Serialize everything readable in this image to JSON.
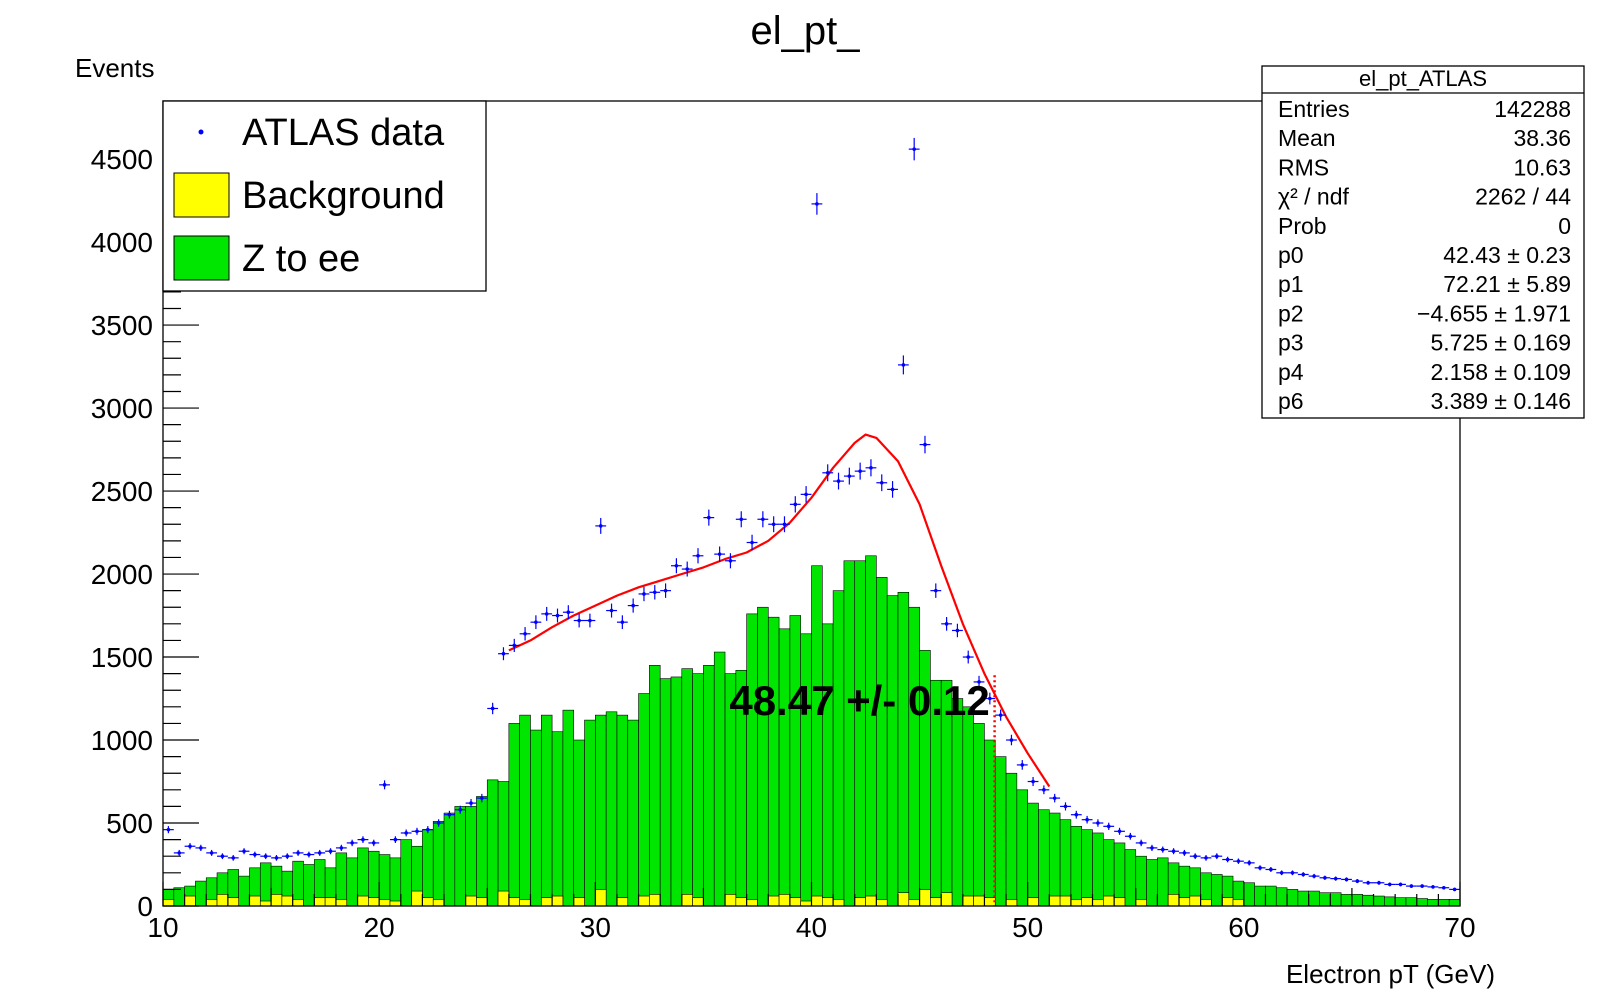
{
  "chart_data": {
    "type": "histogram",
    "title": "el_pt_",
    "xlabel": "Electron pT (GeV)",
    "ylabel": "Events",
    "xlim": [
      10,
      70
    ],
    "ylim": [
      0,
      4850
    ],
    "x_ticks": [
      "10",
      "20",
      "30",
      "40",
      "50",
      "60",
      "70"
    ],
    "y_ticks": [
      "0",
      "500",
      "1000",
      "1500",
      "2000",
      "2500",
      "3000",
      "3500",
      "4000",
      "4500"
    ],
    "bin_width": 0.5,
    "legend": {
      "placement": "top-left",
      "entries": [
        {
          "label": "ATLAS data",
          "style": "marker",
          "color": "#0000ff"
        },
        {
          "label": "Background",
          "style": "fill",
          "color": "#ffff00"
        },
        {
          "label": "Z to ee",
          "style": "fill",
          "color": "#00e600"
        }
      ]
    },
    "series": [
      {
        "name": "ATLAS data",
        "type": "points",
        "color": "#0000ff",
        "x": [
          10.25,
          10.75,
          11.25,
          11.75,
          12.25,
          12.75,
          13.25,
          13.75,
          14.25,
          14.75,
          15.25,
          15.75,
          16.25,
          16.75,
          17.25,
          17.75,
          18.25,
          18.75,
          19.25,
          19.75,
          20.25,
          20.75,
          21.25,
          21.75,
          22.25,
          22.75,
          23.25,
          23.75,
          24.25,
          24.75,
          25.25,
          25.75,
          26.25,
          26.75,
          27.25,
          27.75,
          28.25,
          28.75,
          29.25,
          29.75,
          30.25,
          30.75,
          31.25,
          31.75,
          32.25,
          32.75,
          33.25,
          33.75,
          34.25,
          34.75,
          35.25,
          35.75,
          36.25,
          36.75,
          37.25,
          37.75,
          38.25,
          38.75,
          39.25,
          39.75,
          40.25,
          40.75,
          41.25,
          41.75,
          42.25,
          42.75,
          43.25,
          43.75,
          44.25,
          44.75,
          45.25,
          45.75,
          46.25,
          46.75,
          47.25,
          47.75,
          48.25,
          48.75,
          49.25,
          49.75,
          50.25,
          50.75,
          51.25,
          51.75,
          52.25,
          52.75,
          53.25,
          53.75,
          54.25,
          54.75,
          55.25,
          55.75,
          56.25,
          56.75,
          57.25,
          57.75,
          58.25,
          58.75,
          59.25,
          59.75,
          60.25,
          60.75,
          61.25,
          61.75,
          62.25,
          62.75,
          63.25,
          63.75,
          64.25,
          64.75,
          65.25,
          65.75,
          66.25,
          66.75,
          67.25,
          67.75,
          68.25,
          68.75,
          69.25,
          69.75
        ],
        "y": [
          460,
          320,
          360,
          350,
          320,
          300,
          290,
          330,
          310,
          300,
          290,
          300,
          320,
          310,
          320,
          330,
          350,
          380,
          400,
          380,
          730,
          400,
          440,
          450,
          460,
          500,
          550,
          580,
          620,
          650,
          1190,
          1520,
          1570,
          1640,
          1710,
          1760,
          1750,
          1770,
          1720,
          1720,
          2290,
          1780,
          1710,
          1810,
          1880,
          1890,
          1900,
          2050,
          2030,
          2110,
          2340,
          2120,
          2080,
          2330,
          2190,
          2330,
          2300,
          2300,
          2420,
          2480,
          4230,
          2610,
          2560,
          2590,
          2620,
          2640,
          2550,
          2510,
          3260,
          4560,
          2780,
          1900,
          1700,
          1660,
          1500,
          1350,
          1250,
          1150,
          1000,
          850,
          750,
          700,
          650,
          600,
          550,
          520,
          500,
          480,
          450,
          420,
          380,
          350,
          340,
          330,
          320,
          300,
          290,
          300,
          280,
          270,
          260,
          230,
          220,
          200,
          200,
          190,
          180,
          170,
          165,
          160,
          150,
          140,
          140,
          130,
          130,
          120,
          120,
          115,
          110,
          100
        ]
      },
      {
        "name": "Z to ee",
        "type": "histogram",
        "color": "#00e600",
        "x": [
          10.25,
          10.75,
          11.25,
          11.75,
          12.25,
          12.75,
          13.25,
          13.75,
          14.25,
          14.75,
          15.25,
          15.75,
          16.25,
          16.75,
          17.25,
          17.75,
          18.25,
          18.75,
          19.25,
          19.75,
          20.25,
          20.75,
          21.25,
          21.75,
          22.25,
          22.75,
          23.25,
          23.75,
          24.25,
          24.75,
          25.25,
          25.75,
          26.25,
          26.75,
          27.25,
          27.75,
          28.25,
          28.75,
          29.25,
          29.75,
          30.25,
          30.75,
          31.25,
          31.75,
          32.25,
          32.75,
          33.25,
          33.75,
          34.25,
          34.75,
          35.25,
          35.75,
          36.25,
          36.75,
          37.25,
          37.75,
          38.25,
          38.75,
          39.25,
          39.75,
          40.25,
          40.75,
          41.25,
          41.75,
          42.25,
          42.75,
          43.25,
          43.75,
          44.25,
          44.75,
          45.25,
          45.75,
          46.25,
          46.75,
          47.25,
          47.75,
          48.25,
          48.75,
          49.25,
          49.75,
          50.25,
          50.75,
          51.25,
          51.75,
          52.25,
          52.75,
          53.25,
          53.75,
          54.25,
          54.75,
          55.25,
          55.75,
          56.25,
          56.75,
          57.25,
          57.75,
          58.25,
          58.75,
          59.25,
          59.75,
          60.25,
          60.75,
          61.25,
          61.75,
          62.25,
          62.75,
          63.25,
          63.75,
          64.25,
          64.75,
          65.25,
          65.75,
          66.25,
          66.75,
          67.25,
          67.75,
          68.25,
          68.75,
          69.25,
          69.75
        ],
        "y": [
          100,
          110,
          120,
          150,
          170,
          200,
          220,
          180,
          230,
          260,
          240,
          210,
          270,
          250,
          280,
          230,
          320,
          290,
          350,
          330,
          310,
          290,
          400,
          360,
          460,
          510,
          560,
          600,
          600,
          660,
          760,
          750,
          1100,
          1150,
          1060,
          1150,
          1050,
          1180,
          1000,
          1120,
          1150,
          1170,
          1150,
          1120,
          1280,
          1450,
          1370,
          1380,
          1430,
          1400,
          1450,
          1530,
          1400,
          1420,
          1760,
          1800,
          1740,
          1670,
          1750,
          1640,
          2050,
          1700,
          1900,
          2080,
          2080,
          2110,
          1980,
          1870,
          1890,
          1800,
          1540,
          1360,
          1360,
          1250,
          1200,
          1100,
          1000,
          900,
          800,
          700,
          620,
          580,
          560,
          520,
          480,
          460,
          440,
          400,
          380,
          340,
          300,
          280,
          290,
          260,
          240,
          230,
          200,
          190,
          180,
          150,
          140,
          120,
          120,
          110,
          100,
          90,
          90,
          80,
          80,
          70,
          70,
          65,
          60,
          55,
          50,
          50,
          45,
          40,
          40,
          40
        ]
      },
      {
        "name": "Background",
        "type": "histogram",
        "color": "#ffff00",
        "x": [
          10.25,
          10.75,
          11.25,
          11.75,
          12.25,
          12.75,
          13.25,
          13.75,
          14.25,
          14.75,
          15.25,
          15.75,
          16.25,
          16.75,
          17.25,
          17.75,
          18.25,
          18.75,
          19.25,
          19.75,
          20.25,
          20.75,
          21.25,
          21.75,
          22.25,
          22.75,
          23.25,
          23.75,
          24.25,
          24.75,
          25.25,
          25.75,
          26.25,
          26.75,
          27.25,
          27.75,
          28.25,
          28.75,
          29.25,
          29.75,
          30.25,
          30.75,
          31.25,
          31.75,
          32.25,
          32.75,
          33.25,
          33.75,
          34.25,
          34.75,
          35.25,
          35.75,
          36.25,
          36.75,
          37.25,
          37.75,
          38.25,
          38.75,
          39.25,
          39.75,
          40.25,
          40.75,
          41.25,
          41.75,
          42.25,
          42.75,
          43.25,
          43.75,
          44.25,
          44.75,
          45.25,
          45.75,
          46.25,
          46.75,
          47.25,
          47.75,
          48.25,
          48.75,
          49.25,
          49.75,
          50.25,
          50.75,
          51.25,
          51.75,
          52.25,
          52.75,
          53.25,
          53.75,
          54.25,
          54.75,
          55.25,
          55.75,
          56.25,
          56.75,
          57.25,
          57.75,
          58.25,
          58.75,
          59.25,
          59.75,
          60.25,
          60.75,
          61.25,
          61.75,
          62.25,
          62.75,
          63.25,
          63.75,
          64.25,
          64.75,
          65.25,
          65.75,
          66.25,
          66.75,
          67.25,
          67.75,
          68.25,
          68.75,
          69.25,
          69.75
        ],
        "y": [
          40,
          0,
          60,
          0,
          40,
          70,
          50,
          0,
          60,
          30,
          70,
          60,
          40,
          0,
          50,
          50,
          40,
          0,
          60,
          50,
          40,
          30,
          0,
          90,
          50,
          40,
          0,
          0,
          60,
          50,
          0,
          90,
          50,
          40,
          0,
          50,
          60,
          0,
          50,
          0,
          100,
          0,
          50,
          0,
          60,
          70,
          0,
          0,
          70,
          50,
          0,
          0,
          70,
          50,
          40,
          0,
          60,
          70,
          50,
          30,
          60,
          50,
          40,
          0,
          50,
          60,
          40,
          0,
          80,
          40,
          100,
          50,
          80,
          0,
          60,
          60,
          50,
          0,
          40,
          0,
          50,
          0,
          60,
          60,
          40,
          50,
          40,
          60,
          50,
          0,
          40,
          0,
          0,
          70,
          50,
          60,
          40,
          0,
          50,
          40,
          0,
          0,
          0,
          0,
          0,
          0,
          0,
          0,
          0,
          0,
          0,
          0,
          0,
          0,
          0,
          0,
          0,
          0,
          0,
          0
        ]
      },
      {
        "name": "fit",
        "type": "line",
        "color": "#ff0000",
        "x": [
          26,
          27,
          28,
          29,
          30,
          31,
          32,
          33,
          34,
          35,
          36,
          37,
          38,
          39,
          40,
          41,
          42,
          42.5,
          43,
          44,
          45,
          46,
          47,
          48,
          49,
          50,
          51
        ],
        "y": [
          1540,
          1600,
          1680,
          1750,
          1810,
          1870,
          1920,
          1960,
          2000,
          2040,
          2090,
          2130,
          2200,
          2310,
          2460,
          2640,
          2790,
          2840,
          2820,
          2680,
          2420,
          2050,
          1700,
          1400,
          1140,
          920,
          720
        ]
      }
    ],
    "annotations": [
      {
        "text": "48.47 +/-  0.12",
        "x": 36.2,
        "y": 1150
      },
      {
        "marker_line": {
          "x": 48.47,
          "y": 1390,
          "color": "#ff0000",
          "style": "dotted"
        }
      }
    ],
    "stats_box": {
      "title": "el_pt_ATLAS",
      "rows": [
        {
          "label": "Entries",
          "value": "142288"
        },
        {
          "label": "Mean",
          "value": "38.36"
        },
        {
          "label": "RMS",
          "value": "10.63"
        },
        {
          "label": "χ² / ndf",
          "value": "2262 / 44"
        },
        {
          "label": "Prob",
          "value": "0"
        },
        {
          "label": "p0",
          "value": "42.43 ± 0.23"
        },
        {
          "label": "p1",
          "value": "72.21 ± 5.89"
        },
        {
          "label": "p2",
          "value": "−4.655 ± 1.971"
        },
        {
          "label": "p3",
          "value": "5.725 ± 0.169"
        },
        {
          "label": "p4",
          "value": "2.158 ± 0.109"
        },
        {
          "label": "p6",
          "value": "3.389 ± 0.146"
        }
      ]
    }
  }
}
